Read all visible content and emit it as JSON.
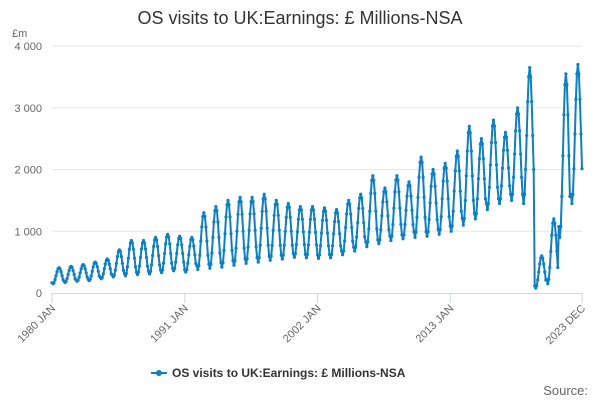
{
  "chart_data": {
    "type": "line",
    "title": "OS visits to UK:Earnings: £ Millions-NSA",
    "y_unit": "£m",
    "x_tick_labels": [
      "1980 JAN",
      "1991 JAN",
      "2002 JAN",
      "2013 JAN",
      "2023 DEC"
    ],
    "x_ticks": [
      1980.0,
      1991.0,
      2002.0,
      2013.0,
      2023.92
    ],
    "xlim": [
      1980.0,
      2023.92
    ],
    "y_tick_labels": [
      "0",
      "1 000",
      "2 000",
      "3 000",
      "4 000"
    ],
    "y_ticks": [
      0,
      1000,
      2000,
      3000,
      4000
    ],
    "ylim": [
      0,
      4000
    ],
    "grid": true,
    "legend_position": "bottom",
    "source_label": "Source:",
    "series": [
      {
        "name": "OS visits to UK:Earnings: £ Millions-NSA",
        "color": "#0e7fc1",
        "frequency": "monthly",
        "start": "1980-01",
        "end": "2023-12",
        "annual_troughs": [
          150,
          170,
          190,
          200,
          230,
          260,
          280,
          300,
          310,
          330,
          360,
          340,
          380,
          400,
          420,
          450,
          480,
          500,
          530,
          550,
          580,
          570,
          560,
          570,
          620,
          680,
          750,
          800,
          850,
          880,
          900,
          920,
          950,
          1000,
          1100,
          1200,
          1350,
          1450,
          1500,
          1450,
          80,
          150,
          900,
          1450
        ],
        "annual_peaks": [
          410,
          430,
          460,
          500,
          550,
          700,
          850,
          850,
          900,
          950,
          920,
          900,
          1300,
          1400,
          1500,
          1550,
          1550,
          1600,
          1500,
          1450,
          1400,
          1400,
          1380,
          1350,
          1500,
          1600,
          1900,
          1700,
          1900,
          1800,
          2200,
          2000,
          2100,
          2300,
          2700,
          2500,
          2800,
          2600,
          3000,
          3650,
          600,
          1200,
          3550,
          3700
        ],
        "peak_month": 8
      }
    ]
  }
}
